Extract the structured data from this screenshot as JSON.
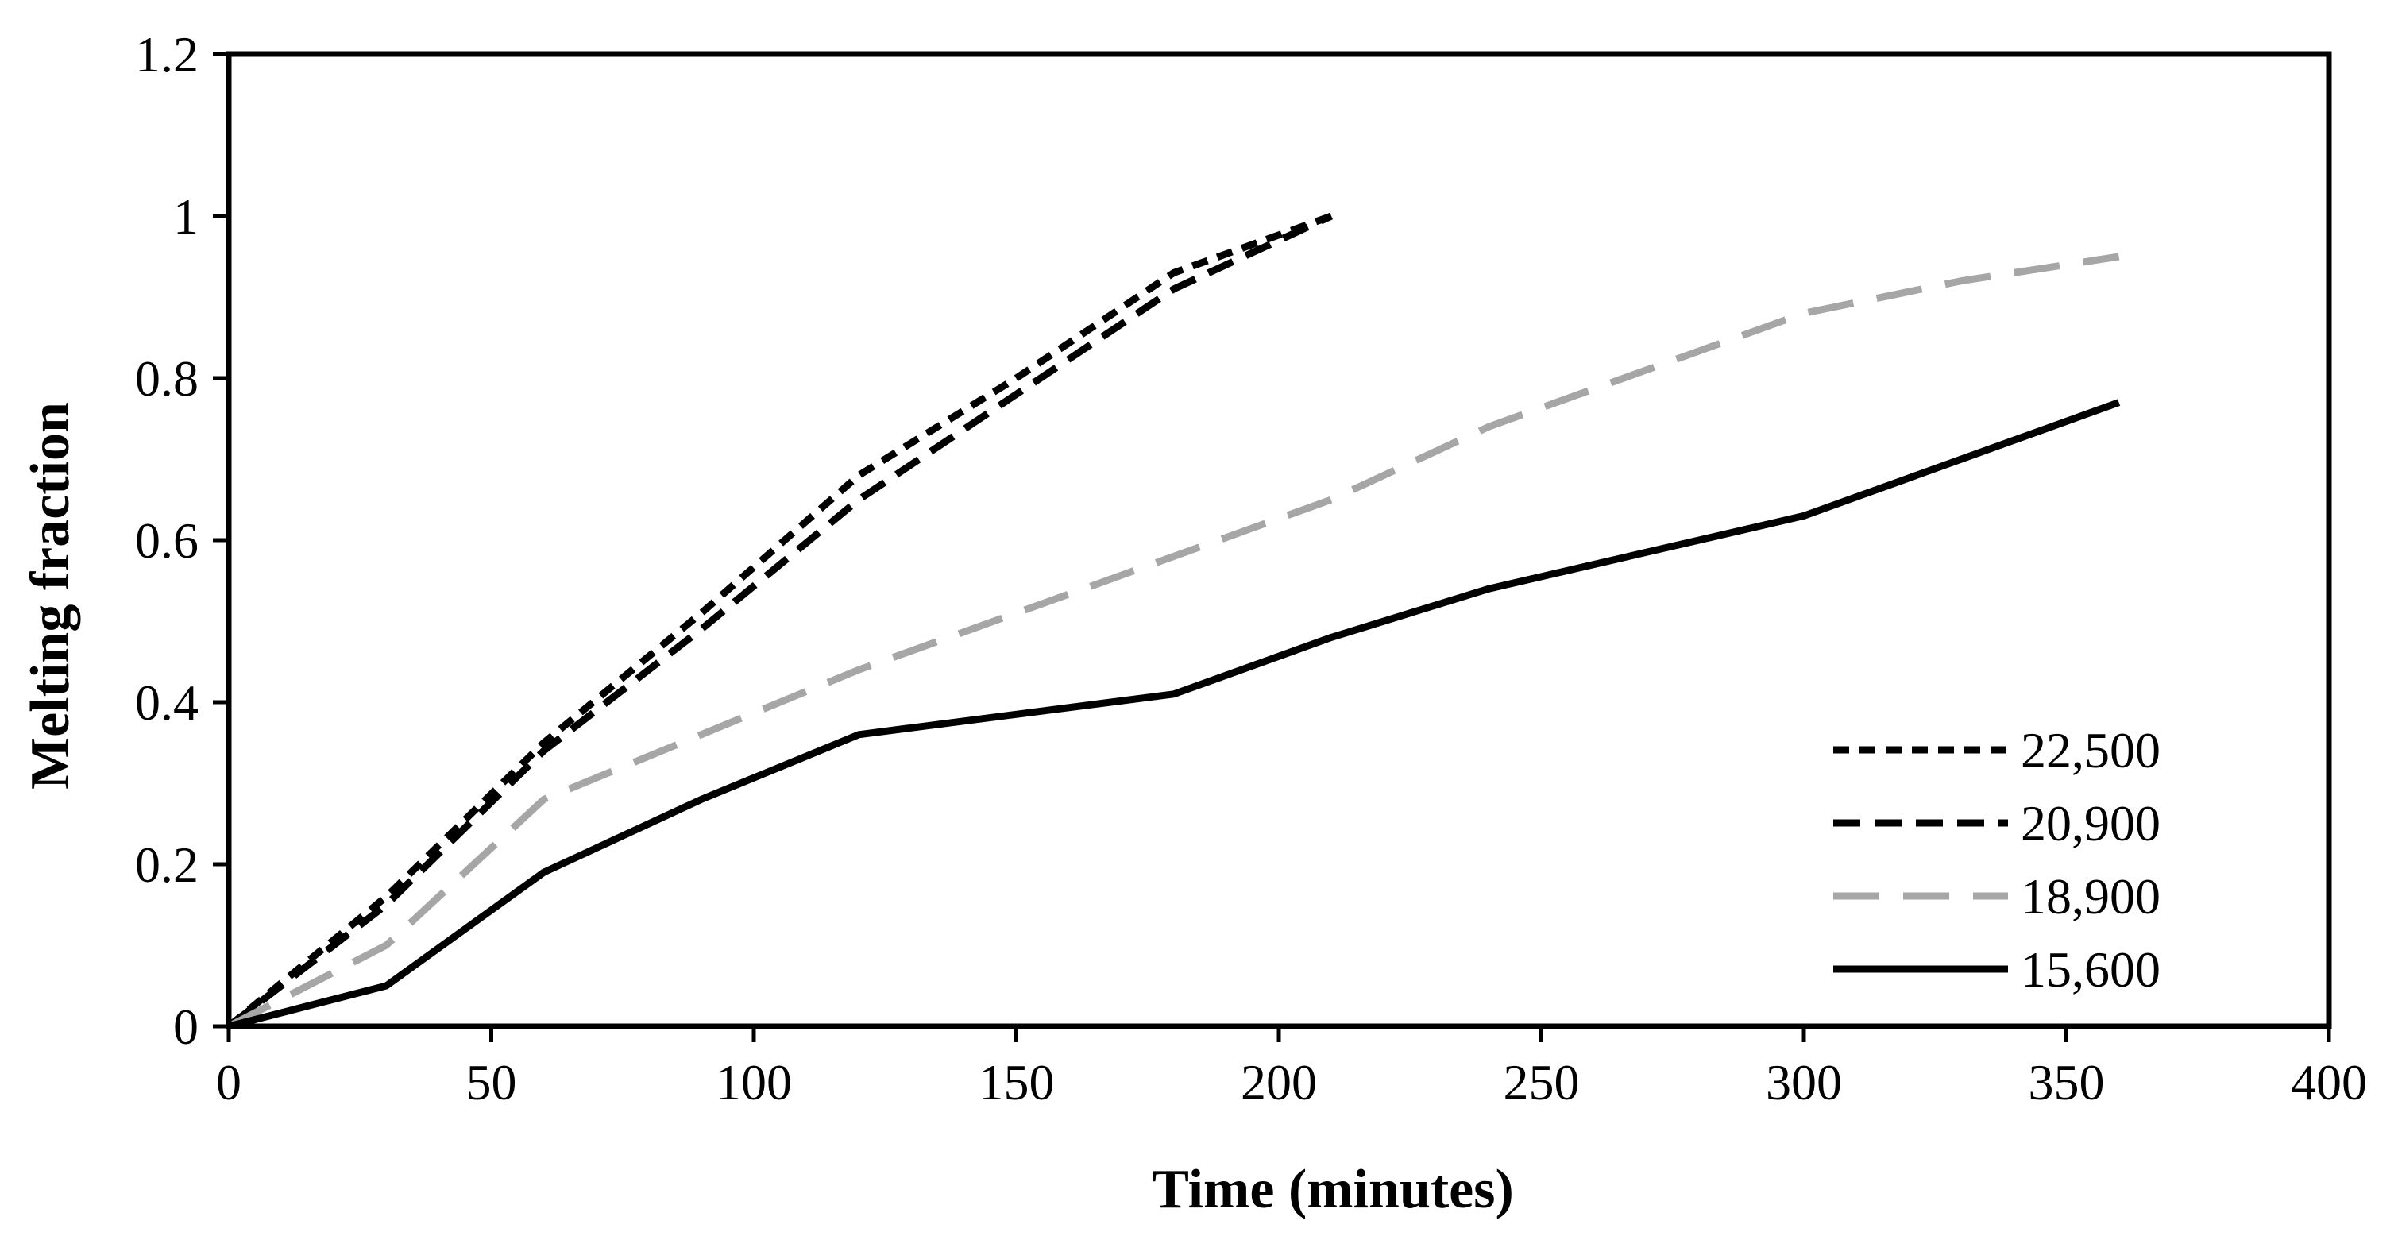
{
  "chart_data": {
    "type": "line",
    "title": "",
    "xlabel": "Time (minutes)",
    "ylabel": "Melting fraction",
    "xlim": [
      0,
      400
    ],
    "ylim": [
      0,
      1.2
    ],
    "x_ticks": [
      0,
      50,
      100,
      150,
      200,
      250,
      300,
      350,
      400
    ],
    "x_tick_labels": [
      "0",
      "50",
      "100",
      "150",
      "200",
      "250",
      "300",
      "350",
      "400"
    ],
    "y_ticks": [
      0,
      0.2,
      0.4,
      0.6,
      0.8,
      1,
      1.2
    ],
    "y_tick_labels": [
      "0",
      "0.2",
      "0.4",
      "0.6",
      "0.8",
      "1",
      "1.2"
    ],
    "grid": false,
    "legend_position": "bottom-right",
    "series": [
      {
        "name": "22,500",
        "style": "short-dash",
        "color": "#000000",
        "points": [
          [
            0,
            0
          ],
          [
            30,
            0.16
          ],
          [
            60,
            0.35
          ],
          [
            90,
            0.51
          ],
          [
            120,
            0.68
          ],
          [
            150,
            0.8
          ],
          [
            180,
            0.93
          ],
          [
            210,
            1.0
          ]
        ]
      },
      {
        "name": "20,900",
        "style": "dash",
        "color": "#000000",
        "points": [
          [
            0,
            0
          ],
          [
            30,
            0.15
          ],
          [
            60,
            0.34
          ],
          [
            90,
            0.49
          ],
          [
            120,
            0.65
          ],
          [
            150,
            0.78
          ],
          [
            180,
            0.91
          ],
          [
            210,
            1.0
          ]
        ]
      },
      {
        "name": "18,900",
        "style": "long-dash",
        "color": "#a6a6a6",
        "points": [
          [
            0,
            0
          ],
          [
            30,
            0.1
          ],
          [
            60,
            0.28
          ],
          [
            90,
            0.36
          ],
          [
            120,
            0.44
          ],
          [
            150,
            0.51
          ],
          [
            180,
            0.58
          ],
          [
            210,
            0.65
          ],
          [
            240,
            0.74
          ],
          [
            270,
            0.81
          ],
          [
            300,
            0.88
          ],
          [
            330,
            0.92
          ],
          [
            360,
            0.95
          ]
        ]
      },
      {
        "name": "15,600",
        "style": "solid",
        "color": "#000000",
        "points": [
          [
            0,
            0
          ],
          [
            30,
            0.05
          ],
          [
            60,
            0.19
          ],
          [
            90,
            0.28
          ],
          [
            120,
            0.36
          ],
          [
            150,
            0.385
          ],
          [
            180,
            0.41
          ],
          [
            210,
            0.48
          ],
          [
            240,
            0.54
          ],
          [
            270,
            0.585
          ],
          [
            300,
            0.63
          ],
          [
            330,
            0.7
          ],
          [
            360,
            0.77
          ]
        ]
      }
    ]
  }
}
